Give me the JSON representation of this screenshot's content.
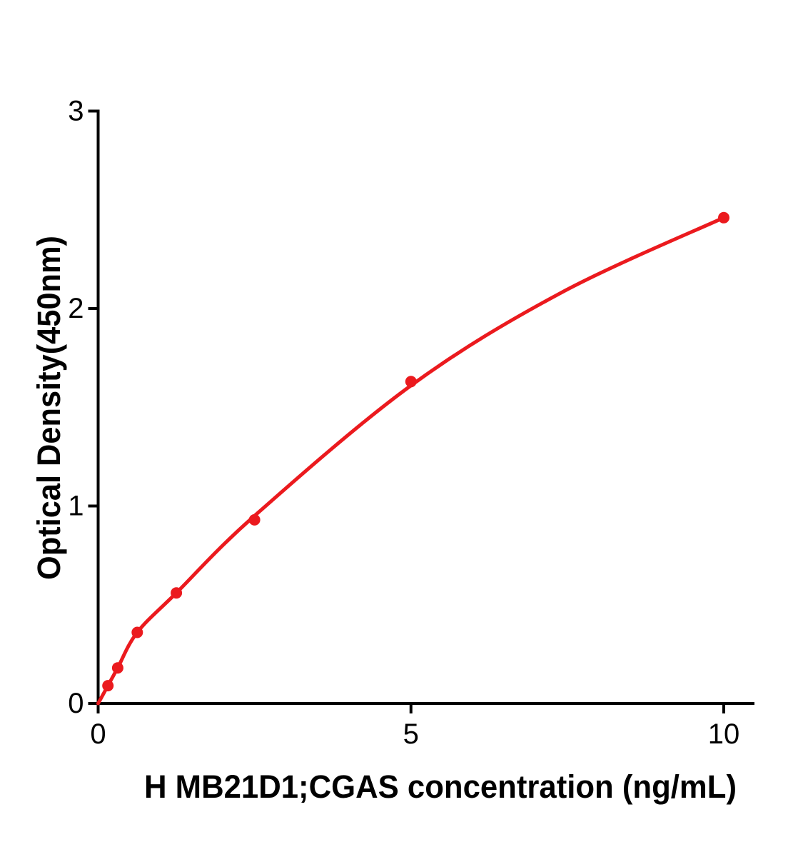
{
  "figure": {
    "background": "#ffffff",
    "kind": "ELISA standard curve plot"
  },
  "chart_data": {
    "type": "scatter",
    "title": "",
    "xlabel": "H  MB21D1;CGAS concentration (ng/mL)",
    "ylabel": "Optical Density(450nm)",
    "xlim": [
      0,
      10.5
    ],
    "ylim": [
      0,
      3
    ],
    "xticks": [
      0,
      5,
      10
    ],
    "yticks": [
      0,
      1,
      2,
      3
    ],
    "grid": false,
    "legend_position": "none",
    "series_color": "#eb1a1e",
    "axis_color": "#000000",
    "series": [
      {
        "name": "standard-curve-points",
        "marker": "circle",
        "x": [
          0.156,
          0.3125,
          0.625,
          1.25,
          2.5,
          5,
          10
        ],
        "od": [
          0.09,
          0.18,
          0.36,
          0.56,
          0.93,
          1.63,
          2.46
        ]
      }
    ],
    "fit_curve": {
      "name": "fitted-curve",
      "x": [
        0,
        0.156,
        0.3125,
        0.625,
        1.25,
        2.5,
        5,
        7.4,
        10
      ],
      "od": [
        0,
        0.09,
        0.18,
        0.36,
        0.56,
        0.95,
        1.61,
        2.08,
        2.46
      ]
    }
  }
}
